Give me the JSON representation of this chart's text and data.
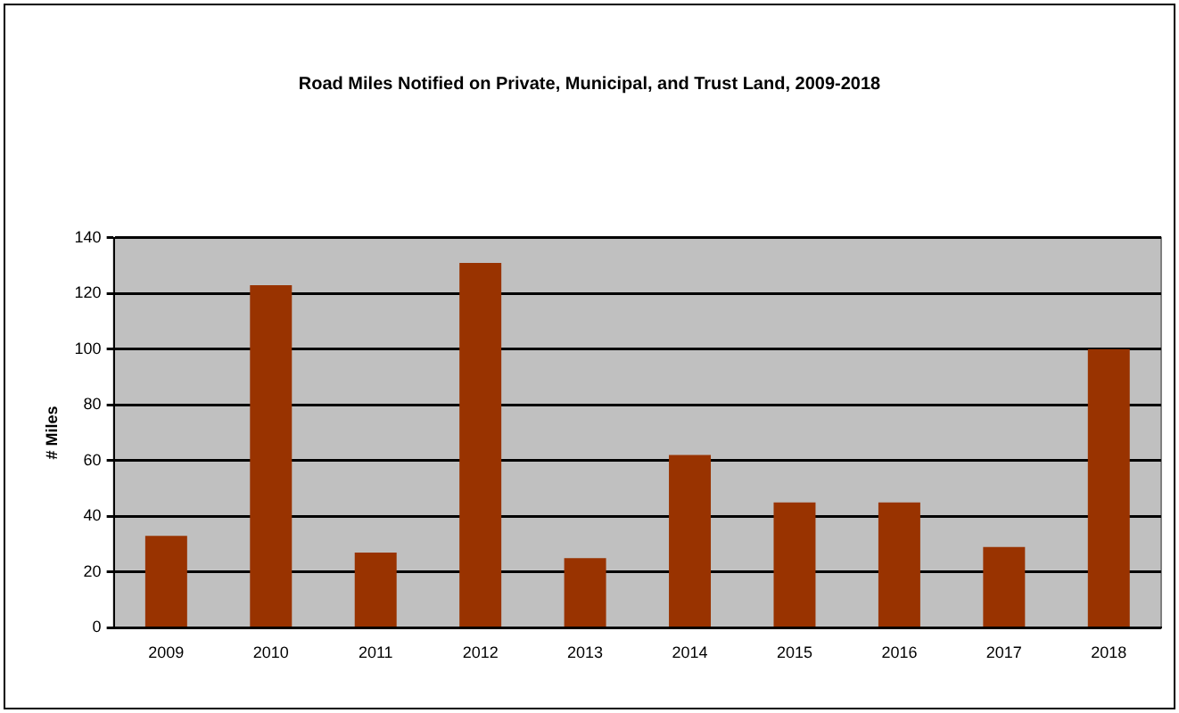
{
  "chart_data": {
    "type": "bar",
    "title": "Road Miles Notified on Private, Municipal, and Trust Land, 2009-2018",
    "ylabel": "# Miles",
    "categories": [
      "2009",
      "2010",
      "2011",
      "2012",
      "2013",
      "2014",
      "2015",
      "2016",
      "2017",
      "2018"
    ],
    "values": [
      33,
      123,
      27,
      131,
      25,
      62,
      45,
      45,
      29,
      100
    ],
    "color": "#993300",
    "ylim": [
      0,
      140
    ],
    "yticks": [
      0,
      20,
      40,
      60,
      80,
      100,
      120,
      140
    ],
    "grid": "y",
    "legend": false
  }
}
